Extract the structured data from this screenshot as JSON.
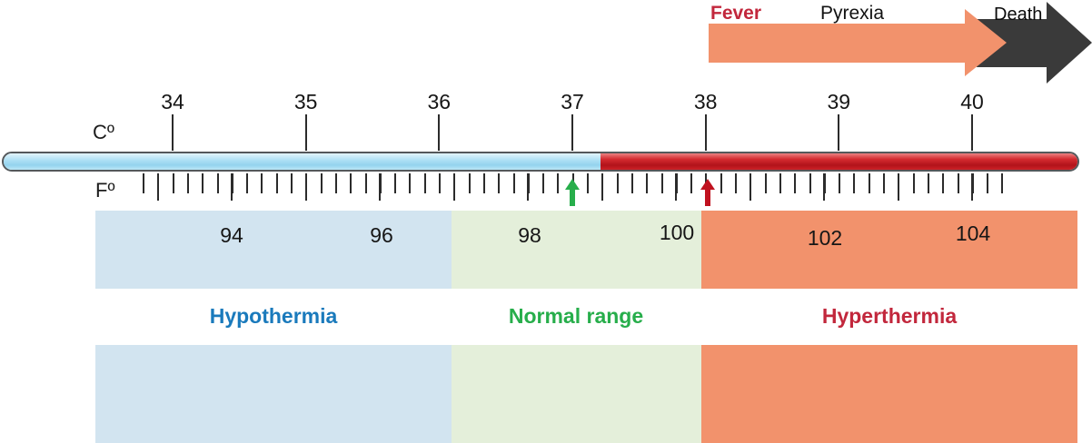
{
  "progression": {
    "fever": "Fever",
    "pyrexia": "Pyrexia",
    "death": "Death",
    "arrow_color": "#f2926c",
    "death_arrow_color": "#3a3a3a",
    "fever_text_color": "#c2273c"
  },
  "celsius": {
    "label": "Cº",
    "ticks": [
      "34",
      "35",
      "36",
      "37",
      "38",
      "39",
      "40"
    ]
  },
  "fahrenheit": {
    "label": "Fº",
    "ticks": [
      "94",
      "96",
      "98",
      "100",
      "102",
      "104"
    ]
  },
  "thermometer": {
    "cold_color": "#a9ddf3",
    "hot_color": "#c8161d"
  },
  "markers": {
    "normal_arrow_color": "#27ae4b",
    "fever_arrow_color": "#c0121f"
  },
  "zones": [
    {
      "label": "Hypothermia",
      "text_color": "#1a7abc",
      "band_color": "#d2e4f0"
    },
    {
      "label": "Normal range",
      "text_color": "#27ae4b",
      "band_color": "#e4efda"
    },
    {
      "label": "Hyperthermia",
      "text_color": "#c2273c",
      "band_color": "#f2926c"
    }
  ]
}
